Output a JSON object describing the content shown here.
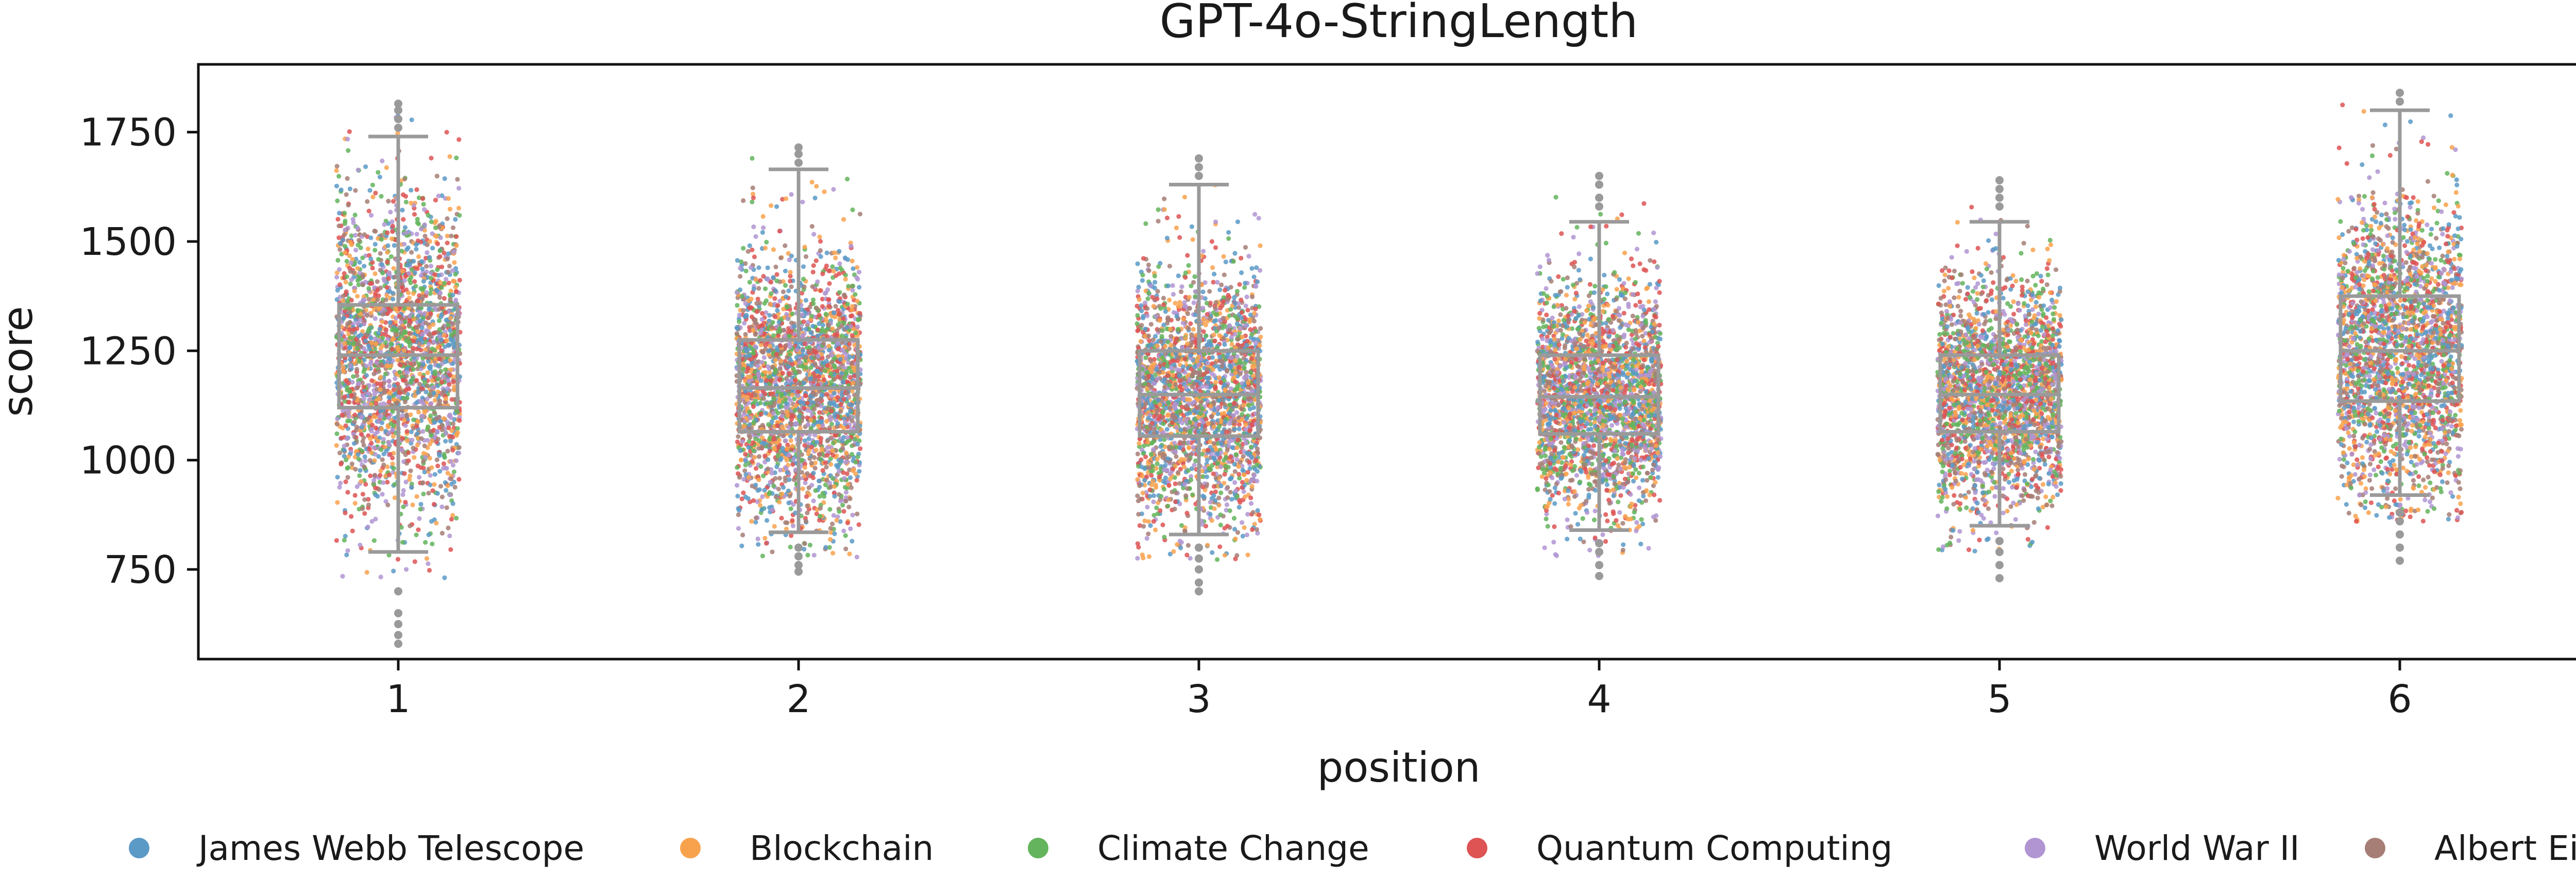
{
  "chart_data": {
    "type": "scatter",
    "subtype": "strip-plot-with-boxplot",
    "title": "GPT-4o-StringLength",
    "xlabel": "position",
    "ylabel": "score",
    "categories": [
      "1",
      "2",
      "3",
      "4",
      "5",
      "6"
    ],
    "ylim": [
      545,
      1905
    ],
    "yticks": [
      750,
      1000,
      1250,
      1500,
      1750
    ],
    "grid": false,
    "legend": {
      "placement": "bottom",
      "entries": [
        {
          "name": "James Webb Telescope",
          "color": "#5b9ac7"
        },
        {
          "name": "Blockchain",
          "color": "#f9a24d"
        },
        {
          "name": "Climate Change",
          "color": "#63b45c"
        },
        {
          "name": "Quantum Computing",
          "color": "#de5353"
        },
        {
          "name": "World War II",
          "color": "#b095d2"
        },
        {
          "name": "Albert Einstein",
          "color": "#a67e76"
        }
      ]
    },
    "box_color": "#9a9a9a",
    "boxes": [
      {
        "category": "1",
        "q1": 1120,
        "median": 1240,
        "q3": 1355,
        "whisker_low": 790,
        "whisker_high": 1740,
        "outliers": [
          580,
          600,
          625,
          650,
          700,
          1760,
          1780,
          1800,
          1815
        ]
      },
      {
        "category": "2",
        "q1": 1065,
        "median": 1165,
        "q3": 1275,
        "whisker_low": 835,
        "whisker_high": 1665,
        "outliers": [
          745,
          760,
          780,
          800,
          1680,
          1700,
          1715
        ]
      },
      {
        "category": "3",
        "q1": 1055,
        "median": 1150,
        "q3": 1250,
        "whisker_low": 830,
        "whisker_high": 1630,
        "outliers": [
          700,
          720,
          750,
          775,
          800,
          1650,
          1670,
          1690
        ]
      },
      {
        "category": "4",
        "q1": 1060,
        "median": 1145,
        "q3": 1240,
        "whisker_low": 840,
        "whisker_high": 1545,
        "outliers": [
          735,
          760,
          790,
          810,
          1580,
          1600,
          1630,
          1650
        ]
      },
      {
        "category": "5",
        "q1": 1065,
        "median": 1150,
        "q3": 1240,
        "whisker_low": 850,
        "whisker_high": 1545,
        "outliers": [
          730,
          760,
          790,
          815,
          1580,
          1600,
          1620,
          1640
        ]
      },
      {
        "category": "6",
        "q1": 1135,
        "median": 1250,
        "q3": 1375,
        "whisker_low": 920,
        "whisker_high": 1800,
        "outliers": [
          770,
          800,
          830,
          860,
          880,
          1820,
          1840
        ]
      }
    ],
    "points_per_category": 2400
  }
}
